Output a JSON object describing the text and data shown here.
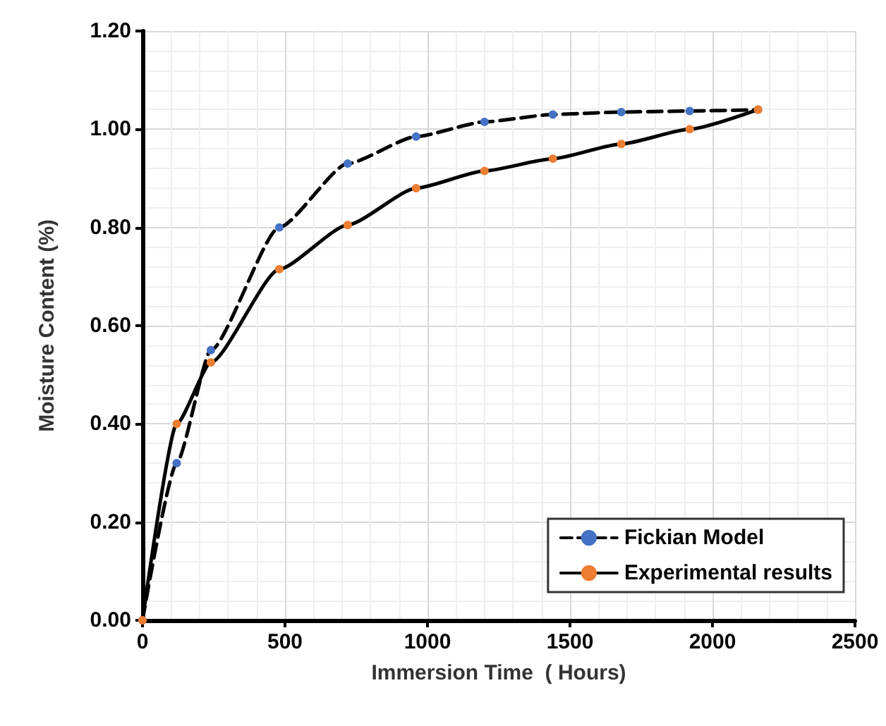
{
  "chart_data": {
    "type": "line",
    "xlabel": "Immersion Time  ( Hours)",
    "ylabel": "Moisture Content (%)",
    "x": [
      0,
      120,
      240,
      480,
      720,
      960,
      1200,
      1440,
      1680,
      1920,
      2160
    ],
    "series": [
      {
        "name": "Fickian Model",
        "color": "#000000",
        "colors": [
          "#4472c4",
          "#4472c4",
          "#4472c4",
          "#4472c4",
          "#4472c4",
          "#4472c4",
          "#4472c4",
          "#4472c4",
          "#4472c4",
          "#4472c4",
          "#4472c4"
        ],
        "line_style": "dashed",
        "values": [
          0,
          0.32,
          0.55,
          0.8,
          0.93,
          0.985,
          1.015,
          1.03,
          1.035,
          1.037,
          1.04
        ]
      },
      {
        "name": "Experimental results",
        "color": "#000000",
        "colors": [
          "#ed7d31",
          "#ed7d31",
          "#ed7d31",
          "#ed7d31",
          "#ed7d31",
          "#ed7d31",
          "#ed7d31",
          "#ed7d31",
          "#ed7d31",
          "#ed7d31",
          "#ed7d31"
        ],
        "line_style": "solid",
        "values": [
          0,
          0.4,
          0.525,
          0.715,
          0.805,
          0.88,
          0.915,
          0.94,
          0.97,
          1.0,
          1.04
        ]
      }
    ],
    "xlim": [
      0,
      2500
    ],
    "xticks": [
      0,
      500,
      1000,
      1500,
      2000,
      2500
    ],
    "ylim": [
      0,
      1.2
    ],
    "yticks": [
      {
        "value": 0,
        "label": "0.00"
      },
      {
        "value": 0.2,
        "label": "0.20"
      },
      {
        "value": 0.4,
        "label": "0.40"
      },
      {
        "value": 0.6,
        "label": "0.60"
      },
      {
        "value": 0.8,
        "label": "0.80"
      },
      {
        "value": 1,
        "label": "1.00"
      },
      {
        "value": 1.2,
        "label": "1.20"
      }
    ],
    "grid": true,
    "legend": "bottom right",
    "marker": "circle"
  }
}
